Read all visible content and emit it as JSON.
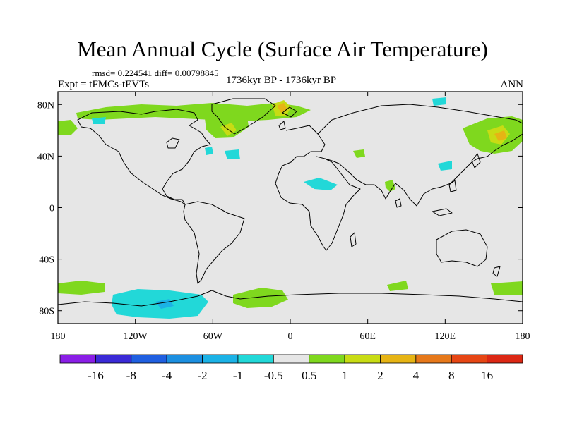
{
  "title": "Mean Annual Cycle (Surface Air Temperature)",
  "stats": "rmsd= 0.224541 diff= 0.00798845",
  "expt": "Expt = tFMCs-tEVTs",
  "period": "1736kyr BP - 1736kyr BP",
  "season": "ANN",
  "map": {
    "lon_range": [
      -180,
      180
    ],
    "lat_range": [
      -90,
      90
    ],
    "lon_ticks": [
      "180",
      "120W",
      "60W",
      "0",
      "60E",
      "120E",
      "180"
    ],
    "lat_ticks": [
      "80N",
      "40N",
      "0",
      "40S",
      "80S"
    ],
    "background_color": "#e6e6e6"
  },
  "colorbar": {
    "labels": [
      "-16",
      "-8",
      "-4",
      "-2",
      "-1",
      "-0.5",
      "0.5",
      "1",
      "2",
      "4",
      "8",
      "16"
    ],
    "colors": [
      "#8a1ee6",
      "#3a2ad6",
      "#1f5fe0",
      "#1c8fe0",
      "#1bb2e6",
      "#22d8d8",
      "#e6e6e6",
      "#7fd81e",
      "#c8dc14",
      "#e6b414",
      "#e6781a",
      "#e64614",
      "#dc2814"
    ]
  }
}
